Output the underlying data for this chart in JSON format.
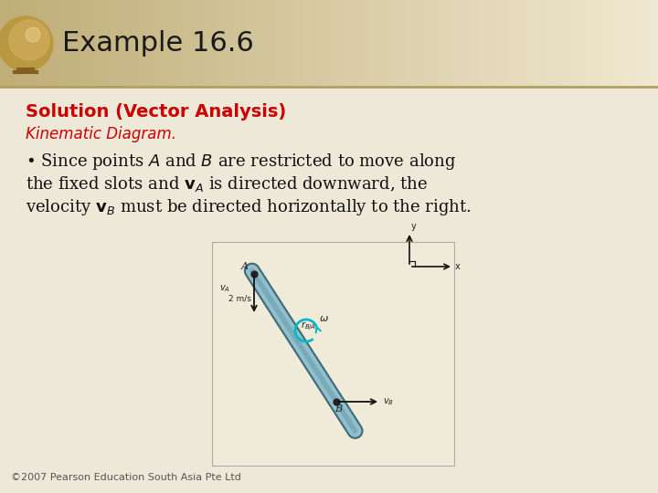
{
  "title": "Example 16.6",
  "title_color": "#1a1a1a",
  "title_fontsize": 22,
  "header_bg_left": "#c8b070",
  "header_bg_right": "#f0ead0",
  "body_bg": "#ede8d8",
  "solution_text": "Solution (Vector Analysis)",
  "solution_color": "#cc0000",
  "solution_fontsize": 14,
  "kinematic_text": "Kinematic Diagram.",
  "kinematic_color": "#cc0000",
  "kinematic_fontsize": 12,
  "body_text_color": "#111111",
  "body_fontsize": 13,
  "footer_text": "©2007 Pearson Education South Asia Pte Ltd",
  "footer_fontsize": 8,
  "header_line_color": "#b0a060",
  "rod_color": "#90c0cc",
  "rod_edge_color": "#406878",
  "omega_color": "#00b8c8",
  "arrow_color": "#111111",
  "coord_color": "#111111",
  "dot_color": "#222222",
  "label_color": "#222222",
  "diag_bg": "#f0ead8",
  "diag_edge": "#aaaaaa"
}
